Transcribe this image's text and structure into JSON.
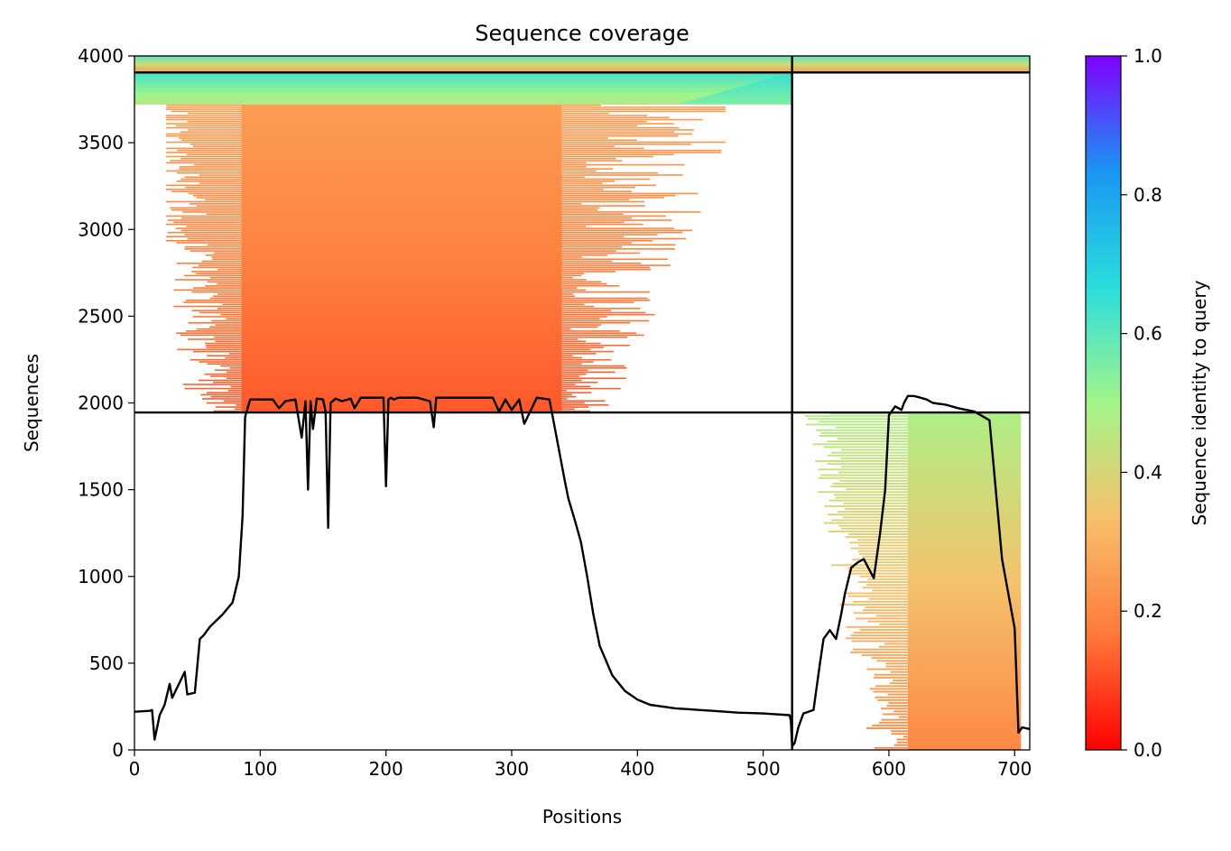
{
  "chart_data": {
    "type": "heatmap",
    "title": "Sequence coverage",
    "xlabel": "Positions",
    "ylabel": "Sequences",
    "xlim": [
      0,
      712
    ],
    "ylim": [
      0,
      4000
    ],
    "xticks": [
      0,
      100,
      200,
      300,
      400,
      500,
      600,
      700
    ],
    "yticks": [
      0,
      500,
      1000,
      1500,
      2000,
      2500,
      3000,
      3500,
      4000
    ],
    "grid": false,
    "colorbar": {
      "label": "Sequence identity to query",
      "ticks": [
        0.0,
        0.2,
        0.4,
        0.6,
        0.8,
        1.0
      ],
      "tick_labels": [
        "0.0",
        "0.2",
        "0.4",
        "0.6",
        "0.8",
        "1.0"
      ],
      "range": [
        0,
        1
      ],
      "colormap": "rainbow_r",
      "colors": [
        "#ff0000",
        "#ff7a3a",
        "#f7c06b",
        "#a3f58a",
        "#2adddd",
        "#1996f3",
        "#8000ff"
      ]
    },
    "chain_boundary": {
      "x": 523
    },
    "row_dividers": [
      {
        "y": 1945,
        "x_from": 0,
        "x_to": 712
      },
      {
        "y": 3905,
        "x_from": 0,
        "x_to": 712
      }
    ],
    "coverage_blocks": [
      {
        "name": "block-upper-left-main",
        "x_from": 85,
        "x_to": 340,
        "y_from": 1945,
        "y_to": 3720,
        "identity_bottom": 0.12,
        "identity_top": 0.25
      },
      {
        "name": "block-upper-left-cyan",
        "x_from": 0,
        "x_to": 523,
        "y_from": 3720,
        "y_to": 3905,
        "identity_bottom": 0.55,
        "identity_top": 0.65
      },
      {
        "name": "block-top-strip-left",
        "x_from": 0,
        "x_to": 523,
        "y_from": 3905,
        "y_to": 4000,
        "identity_bottom": 0.25,
        "identity_top": 0.6
      },
      {
        "name": "block-top-strip-right",
        "x_from": 523,
        "x_to": 712,
        "y_from": 3905,
        "y_to": 4000,
        "identity_bottom": 0.25,
        "identity_top": 0.6
      },
      {
        "name": "block-lower-right",
        "x_from": 615,
        "x_to": 705,
        "y_from": 0,
        "y_to": 1945,
        "identity_bottom": 0.2,
        "identity_top": 0.48
      }
    ],
    "coverage_line": {
      "x": [
        0,
        12,
        14,
        16,
        20,
        24,
        28,
        30,
        40,
        42,
        48,
        52,
        55,
        60,
        70,
        78,
        83,
        86,
        88,
        92,
        98,
        110,
        115,
        120,
        128,
        133,
        136,
        138,
        140,
        142,
        145,
        150,
        152,
        154,
        156,
        160,
        165,
        172,
        175,
        180,
        190,
        198,
        200,
        202,
        204,
        206,
        210,
        225,
        235,
        238,
        240,
        245,
        260,
        285,
        290,
        295,
        300,
        306,
        310,
        320,
        330,
        342,
        345,
        350,
        355,
        360,
        365,
        370,
        380,
        390,
        400,
        410,
        420,
        430,
        440,
        450,
        460,
        480,
        500,
        521,
        522,
        523,
        525,
        528,
        532,
        540,
        545,
        548,
        553,
        558,
        562,
        565,
        570,
        575,
        580,
        588,
        593,
        597,
        600,
        605,
        610,
        612,
        615,
        620,
        625,
        630,
        635,
        645,
        655,
        668,
        680,
        690,
        700,
        703,
        706,
        712
      ],
      "y": [
        220,
        225,
        230,
        60,
        200,
        260,
        380,
        300,
        450,
        320,
        330,
        640,
        660,
        710,
        780,
        850,
        1000,
        1350,
        1920,
        2020,
        2020,
        2020,
        1970,
        2010,
        2020,
        1800,
        2010,
        1500,
        2010,
        1850,
        2025,
        2020,
        1950,
        1280,
        2000,
        2025,
        2010,
        2025,
        1970,
        2030,
        2030,
        2030,
        1520,
        2020,
        2030,
        2020,
        2030,
        2030,
        2010,
        1860,
        2030,
        2030,
        2030,
        2030,
        1950,
        2020,
        1960,
        2020,
        1880,
        2030,
        2020,
        1560,
        1450,
        1330,
        1200,
        1000,
        780,
        600,
        430,
        340,
        290,
        260,
        250,
        240,
        235,
        230,
        225,
        215,
        210,
        200,
        170,
        20,
        40,
        130,
        210,
        230,
        490,
        640,
        690,
        640,
        780,
        900,
        1050,
        1080,
        1100,
        990,
        1250,
        1500,
        1930,
        1980,
        1960,
        2000,
        2040,
        2040,
        2030,
        2020,
        2000,
        1990,
        1970,
        1950,
        1900,
        1100,
        700,
        100,
        130,
        120
      ]
    }
  }
}
